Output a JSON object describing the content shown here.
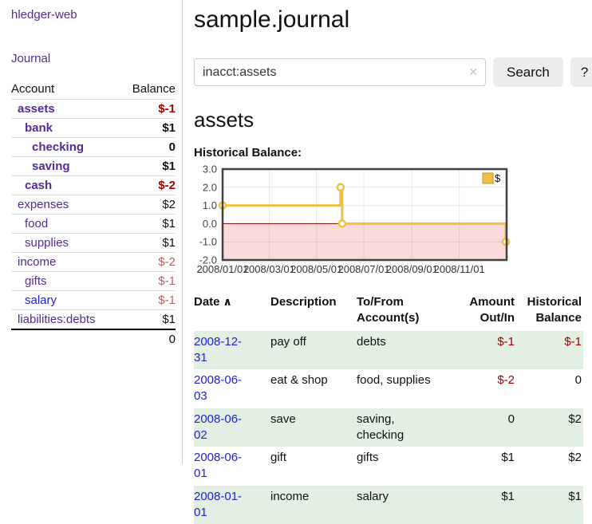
{
  "app_title": "hledger-web",
  "colors": {
    "purple": "#552a94",
    "link-blue": "#2222cc",
    "neg-strong": "#a40000",
    "neg-soft": "#b36565",
    "row-green": "#e2efe2",
    "border-gray": "#dddddd",
    "separator": "#cccccc",
    "button-bg": "#ececec"
  },
  "sidebar": {
    "nav_journal": "Journal",
    "table": {
      "header_account": "Account",
      "header_balance": "Balance",
      "rows": [
        {
          "name": "assets",
          "balance": "$-1"
        },
        {
          "name": "bank",
          "balance": "$1"
        },
        {
          "name": "checking",
          "balance": "0"
        },
        {
          "name": "saving",
          "balance": "$1"
        },
        {
          "name": "cash",
          "balance": "$-2"
        },
        {
          "name": "expenses",
          "balance": "$2"
        },
        {
          "name": "food",
          "balance": "$1"
        },
        {
          "name": "supplies",
          "balance": "$1"
        },
        {
          "name": "income",
          "balance": "$-2"
        },
        {
          "name": "gifts",
          "balance": "$-1"
        },
        {
          "name": "salary",
          "balance": "$-1"
        },
        {
          "name": "liabilities:debts",
          "balance": "$1"
        }
      ],
      "total": "0"
    }
  },
  "main": {
    "title": "sample.journal",
    "search": {
      "value": "inacct:assets",
      "clear_icon": "✕",
      "button_label": "Search",
      "help_label": "?"
    },
    "heading": "assets",
    "chart_title": "Historical Balance:",
    "register": {
      "headers": {
        "date": "Date",
        "sort_icon": "∧",
        "description": "Description",
        "accounts": "To/From Account(s)",
        "amount": "Amount Out/In",
        "balance": "Historical Balance"
      },
      "rows": [
        {
          "date": "2008-12-31",
          "description": "pay off",
          "accounts": "debts",
          "amount": "$-1",
          "balance": "$-1"
        },
        {
          "date": "2008-06-03",
          "description": "eat & shop",
          "accounts": "food, supplies",
          "amount": "$-2",
          "balance": "0"
        },
        {
          "date": "2008-06-02",
          "description": "save",
          "accounts": "saving, checking",
          "amount": "0",
          "balance": "$2"
        },
        {
          "date": "2008-06-01",
          "description": "gift",
          "accounts": "gifts",
          "amount": "$1",
          "balance": "$2"
        },
        {
          "date": "2008-01-01",
          "description": "income",
          "accounts": "salary",
          "amount": "$1",
          "balance": "$1"
        }
      ]
    }
  },
  "chart_data": {
    "type": "line",
    "title": "Historical Balance",
    "step": true,
    "series": [
      {
        "name": "$",
        "color": "#edc240",
        "points": [
          [
            "2008-01-01",
            1
          ],
          [
            "2008-06-01",
            2
          ],
          [
            "2008-06-03",
            0
          ],
          [
            "2008-12-31",
            -1
          ]
        ]
      }
    ],
    "x_range": [
      "2008-01-01",
      "2009-01-01"
    ],
    "x_ticks": [
      "2008/01/01",
      "2008/03/01",
      "2008/05/01",
      "2008/07/01",
      "2008/09/01",
      "2008/11/01"
    ],
    "y_ticks": [
      3.0,
      2.0,
      1.0,
      0.0,
      -1.0,
      -2.0
    ],
    "ylim": [
      -2,
      3
    ],
    "grid": true,
    "legend_position": "top-right",
    "zero_line_color": "#8b0000",
    "negative_fill": "#fbdada",
    "plot_border_color": "#404040",
    "legend_box_border": "#b8952e"
  }
}
